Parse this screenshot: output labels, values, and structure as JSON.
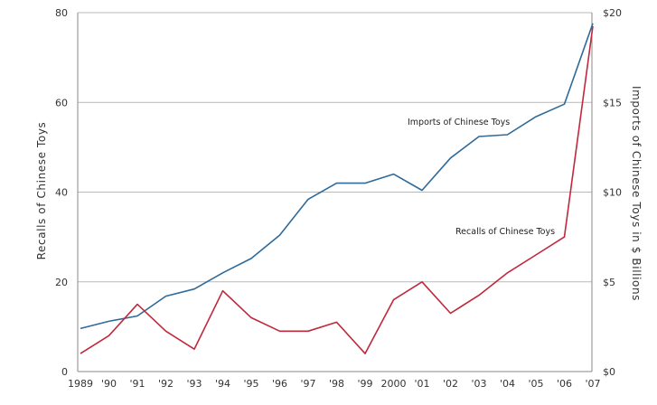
{
  "chart_data": {
    "type": "line",
    "x_tick_labels": [
      "1989",
      "'90",
      "'91",
      "'92",
      "'93",
      "'94",
      "'95",
      "'96",
      "'97",
      "'98",
      "'99",
      "2000",
      "'01",
      "'02",
      "'03",
      "'04",
      "'05",
      "'06",
      "'07"
    ],
    "y_left": {
      "label": "Recalls of Chinese Toys",
      "range": [
        0,
        80
      ],
      "ticks": [
        "0",
        "20",
        "40",
        "60",
        "80"
      ]
    },
    "y_right": {
      "label": "Imports of Chinese Toys in $ Billions",
      "range": [
        0,
        20
      ],
      "ticks": [
        "$0",
        "$5",
        "$10",
        "$15",
        "$20"
      ]
    },
    "grid": true,
    "series": [
      {
        "name": "Imports of Chinese Toys",
        "axis": "right",
        "color": "#2e6a9a",
        "x": [
          1989,
          1990,
          1991,
          1992,
          1993,
          1994,
          1995,
          1996,
          1997,
          1998,
          1999,
          2000,
          2001,
          2002,
          2003,
          2004,
          2005,
          2006,
          2007
        ],
        "values": [
          2.4,
          2.8,
          3.1,
          4.2,
          4.6,
          5.5,
          6.3,
          7.6,
          9.6,
          10.5,
          10.5,
          11.0,
          10.1,
          11.9,
          13.1,
          13.2,
          14.2,
          14.9,
          19.4
        ]
      },
      {
        "name": "Recalls of Chinese Toys",
        "axis": "left",
        "color": "#c0283c",
        "x": [
          1989,
          1990,
          1991,
          1992,
          1993,
          1994,
          1995,
          1996,
          1997,
          1998,
          1999,
          2000,
          2001,
          2002,
          2003,
          2004,
          2005,
          2006,
          2007
        ],
        "values": [
          4,
          8,
          15,
          9,
          5,
          18,
          12,
          9,
          9,
          11,
          4,
          16,
          20,
          13,
          17,
          22,
          26,
          30,
          77
        ]
      }
    ]
  }
}
